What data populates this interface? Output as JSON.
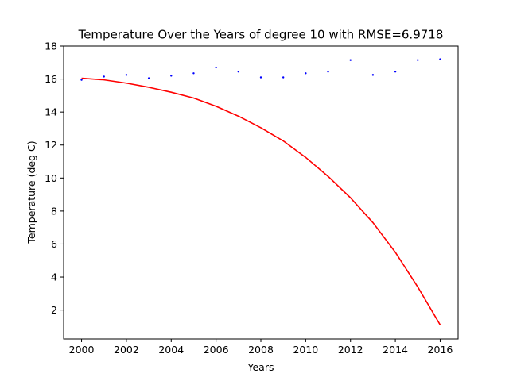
{
  "chart_data": {
    "type": "line",
    "title": "Temperature Over the Years of degree 10 with RMSE=6.9718",
    "xlabel": "Years",
    "ylabel": "Temperature (deg C)",
    "xlim": [
      1999.2,
      2016.8
    ],
    "ylim": [
      0.25,
      18.0
    ],
    "x_ticks": [
      2000,
      2002,
      2004,
      2006,
      2008,
      2010,
      2012,
      2014,
      2016
    ],
    "y_ticks": [
      2,
      4,
      6,
      8,
      10,
      12,
      14,
      16,
      18
    ],
    "grid": false,
    "legend": "none",
    "series": [
      {
        "kind": "scatter",
        "color": "#0000ff",
        "x": [
          2000,
          2001,
          2002,
          2003,
          2004,
          2005,
          2006,
          2007,
          2008,
          2009,
          2010,
          2011,
          2012,
          2013,
          2014,
          2015,
          2016
        ],
        "values": [
          15.95,
          16.15,
          16.25,
          16.05,
          16.2,
          16.35,
          16.7,
          16.45,
          16.1,
          16.1,
          16.35,
          16.45,
          17.15,
          16.25,
          16.45,
          17.15,
          17.2
        ]
      },
      {
        "kind": "line",
        "color": "#ff0000",
        "x": [
          2000,
          2001,
          2002,
          2003,
          2004,
          2005,
          2006,
          2007,
          2008,
          2009,
          2010,
          2011,
          2012,
          2013,
          2014,
          2015,
          2016
        ],
        "values": [
          16.05,
          15.95,
          15.75,
          15.5,
          15.2,
          14.85,
          14.35,
          13.75,
          13.05,
          12.25,
          11.25,
          10.1,
          8.8,
          7.3,
          5.5,
          3.4,
          1.1
        ]
      }
    ]
  }
}
